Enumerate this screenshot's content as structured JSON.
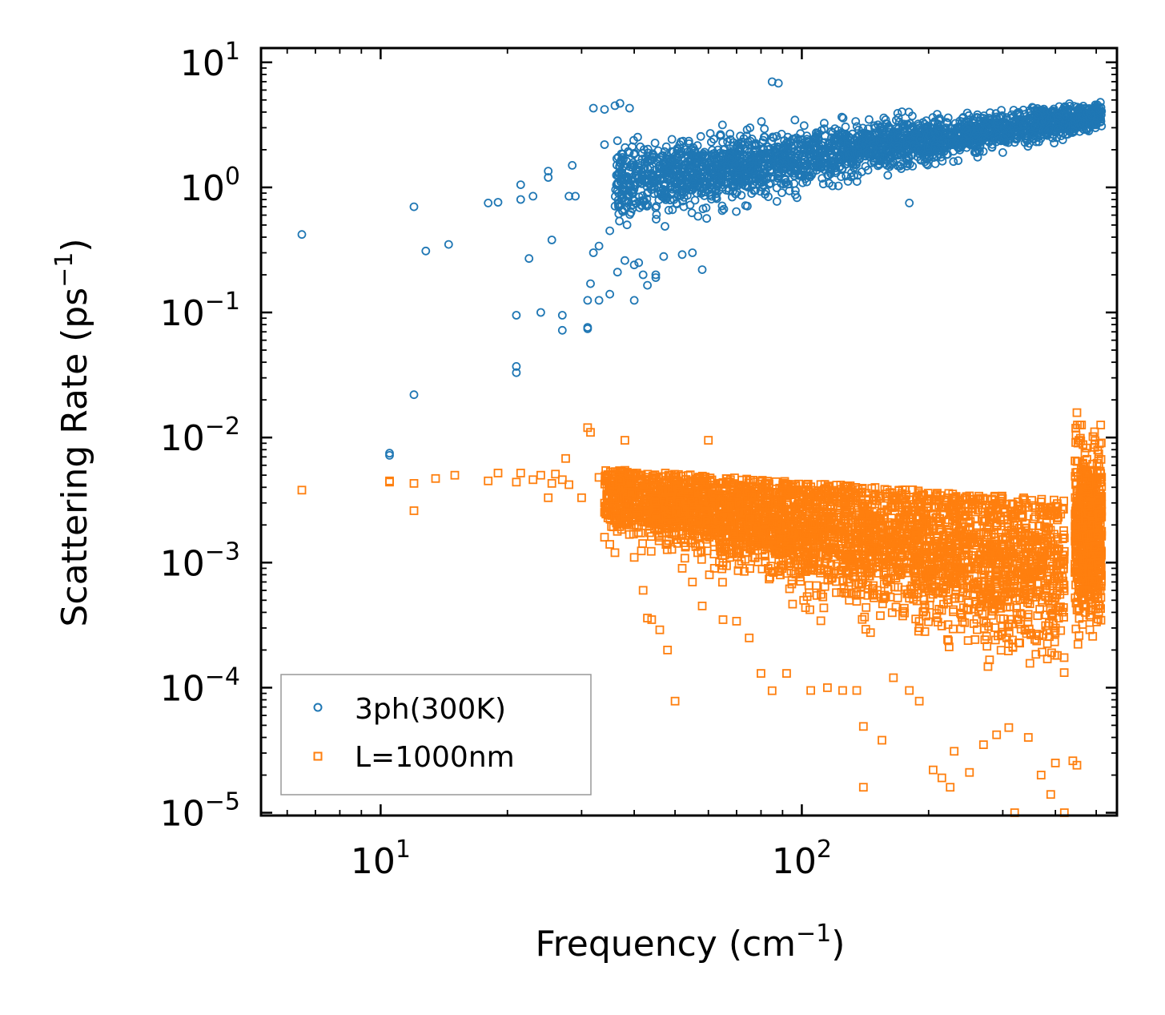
{
  "chart_data": {
    "type": "scatter",
    "xscale": "log",
    "yscale": "log",
    "xlabel": "Frequency (cm",
    "xlabel_sup": "−1",
    "xlabel_end": ")",
    "ylabel": "Scattering Rate (ps",
    "ylabel_sup": "−1",
    "ylabel_end": ")",
    "xlim": [
      5.2,
      560
    ],
    "ylim": [
      9.5e-06,
      13
    ],
    "x_ticks": [
      {
        "base": "10",
        "exp": "1",
        "value": 10
      },
      {
        "base": "10",
        "exp": "2",
        "value": 100
      }
    ],
    "y_ticks": [
      {
        "base": "10",
        "exp": "1",
        "value": 10
      },
      {
        "base": "10",
        "exp": "0",
        "value": 1
      },
      {
        "base": "10",
        "exp": "−1",
        "value": 0.1
      },
      {
        "base": "10",
        "exp": "−2",
        "value": 0.01
      },
      {
        "base": "10",
        "exp": "−3",
        "value": 0.001
      },
      {
        "base": "10",
        "exp": "−4",
        "value": 0.0001
      },
      {
        "base": "10",
        "exp": "−5",
        "value": 1e-05
      }
    ],
    "legend_position": "bottom-left",
    "series": [
      {
        "name": "3ph(300K)",
        "marker": "circle",
        "color": "#1f77b4",
        "points": [
          [
            6.5,
            0.42
          ],
          [
            10.5,
            0.0072
          ],
          [
            10.5,
            0.0075
          ],
          [
            12,
            0.7
          ],
          [
            12,
            0.022
          ],
          [
            12.8,
            0.31
          ],
          [
            14.5,
            0.35
          ],
          [
            18,
            0.75
          ],
          [
            19,
            0.76
          ],
          [
            21,
            0.095
          ],
          [
            21,
            0.037
          ],
          [
            21,
            0.033
          ],
          [
            21.5,
            1.05
          ],
          [
            21.5,
            0.8
          ],
          [
            22.5,
            0.27
          ],
          [
            23,
            0.85
          ],
          [
            24,
            0.1
          ],
          [
            25,
            1.35
          ],
          [
            25,
            1.2
          ],
          [
            25.5,
            0.38
          ],
          [
            27,
            0.095
          ],
          [
            27,
            0.072
          ],
          [
            28,
            0.85
          ],
          [
            28.5,
            1.5
          ],
          [
            29,
            0.85
          ],
          [
            31,
            0.125
          ],
          [
            31,
            0.076
          ],
          [
            31,
            0.074
          ],
          [
            31.5,
            0.17
          ],
          [
            32,
            0.3
          ],
          [
            32,
            4.3
          ],
          [
            33,
            0.34
          ],
          [
            33,
            0.125
          ],
          [
            34,
            2.2
          ],
          [
            34,
            4.2
          ],
          [
            35,
            0.45
          ],
          [
            35,
            0.14
          ],
          [
            36,
            4.5
          ],
          [
            36.5,
            0.21
          ],
          [
            37,
            4.7
          ],
          [
            38,
            0.26
          ],
          [
            39,
            4.3
          ],
          [
            40,
            0.125
          ],
          [
            40,
            0.24
          ],
          [
            41,
            0.25
          ],
          [
            42,
            0.2
          ],
          [
            43,
            0.165
          ],
          [
            45,
            0.19
          ],
          [
            45,
            0.2
          ],
          [
            47,
            0.28
          ],
          [
            52,
            0.29
          ],
          [
            55,
            0.3
          ],
          [
            58,
            0.22
          ],
          [
            85,
            7
          ],
          [
            88,
            6.8
          ],
          [
            180,
            0.75
          ],
          [
            300,
            1.9
          ]
        ]
      },
      {
        "name": "L=1000nm",
        "marker": "square",
        "color": "#ff7f0e",
        "points": [
          [
            6.5,
            0.0038
          ],
          [
            10.5,
            0.0044
          ],
          [
            10.5,
            0.0045
          ],
          [
            12,
            0.0043
          ],
          [
            12,
            0.0026
          ],
          [
            13.5,
            0.0047
          ],
          [
            15,
            0.005
          ],
          [
            18,
            0.0045
          ],
          [
            19,
            0.0052
          ],
          [
            21,
            0.0044
          ],
          [
            21.5,
            0.0052
          ],
          [
            23,
            0.0046
          ],
          [
            24,
            0.005
          ],
          [
            25,
            0.0033
          ],
          [
            25.5,
            0.0043
          ],
          [
            26,
            0.0051
          ],
          [
            27,
            0.0046
          ],
          [
            27.5,
            0.0068
          ],
          [
            28,
            0.0042
          ],
          [
            30,
            0.0033
          ],
          [
            31,
            0.012
          ],
          [
            31.5,
            0.011
          ],
          [
            33,
            0.0048
          ],
          [
            35,
            0.0014
          ],
          [
            36,
            0.0012
          ],
          [
            37,
            0.0045
          ],
          [
            38,
            0.0095
          ],
          [
            40,
            0.0011
          ],
          [
            42,
            0.0006
          ],
          [
            43,
            0.00036
          ],
          [
            44,
            0.00035
          ],
          [
            46,
            0.00029
          ],
          [
            48,
            0.0002
          ],
          [
            50,
            7.8e-05
          ],
          [
            52,
            0.0009
          ],
          [
            55,
            0.0007
          ],
          [
            58,
            0.00045
          ],
          [
            60,
            0.0095
          ],
          [
            62,
            0.0009
          ],
          [
            65,
            0.00035
          ],
          [
            70,
            0.00034
          ],
          [
            75,
            0.00025
          ],
          [
            80,
            0.00013
          ],
          [
            85,
            9.45e-05
          ],
          [
            92,
            0.00013
          ],
          [
            105,
            9.5e-05
          ],
          [
            115,
            0.0001
          ],
          [
            125,
            9.5e-05
          ],
          [
            135,
            9.5e-05
          ],
          [
            140,
            1.6e-05
          ],
          [
            140,
            4.9e-05
          ],
          [
            155,
            3.8e-05
          ],
          [
            165,
            0.00012
          ],
          [
            180,
            9.5e-05
          ],
          [
            190,
            7.8e-05
          ],
          [
            205,
            2.2e-05
          ],
          [
            215,
            1.9e-05
          ],
          [
            225,
            1.6e-05
          ],
          [
            230,
            3.1e-05
          ],
          [
            250,
            2.1e-05
          ],
          [
            270,
            3.5e-05
          ],
          [
            290,
            4.2e-05
          ],
          [
            310,
            4.8e-05
          ],
          [
            320,
            1e-05
          ],
          [
            345,
            4e-05
          ],
          [
            370,
            2e-05
          ],
          [
            390,
            1.4e-05
          ],
          [
            400,
            2.5e-05
          ],
          [
            420,
            1e-05
          ],
          [
            440,
            2.6e-05
          ],
          [
            450,
            2.4e-05
          ],
          [
            450,
            0.0158
          ],
          [
            455,
            0.0095
          ],
          [
            470,
            0.0075
          ],
          [
            480,
            0.0042
          ]
        ]
      }
    ]
  }
}
